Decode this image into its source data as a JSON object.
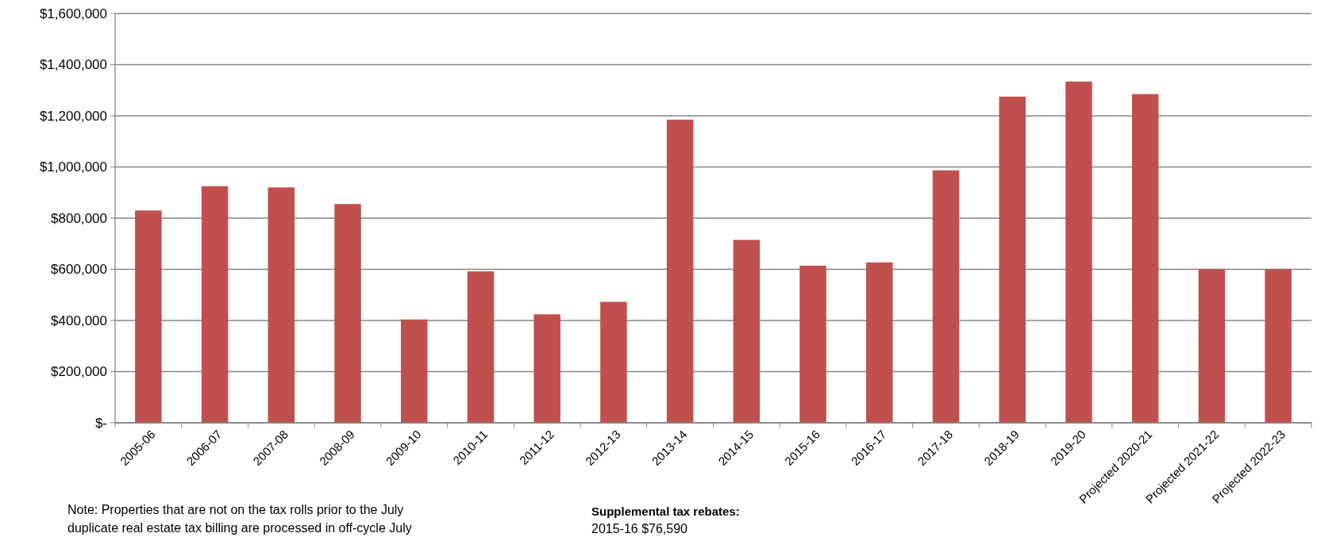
{
  "chart_data": {
    "type": "bar",
    "categories": [
      "2005-06",
      "2006-07",
      "2007-08",
      "2008-09",
      "2009-10",
      "2010-11",
      "2011-12",
      "2012-13",
      "2013-14",
      "2014-15",
      "2015-16",
      "2016-17",
      "2017-18",
      "2018-19",
      "2019-20",
      "Projected 2020-21",
      "Projected 2021-22",
      "Projected 2022-23"
    ],
    "values": [
      830000,
      925000,
      920000,
      855000,
      404000,
      592000,
      424000,
      473000,
      1185000,
      715000,
      614000,
      627000,
      987000,
      1275000,
      1334000,
      1285000,
      600000,
      600000
    ],
    "color": "#c0504d",
    "ylim": [
      0,
      1600000
    ],
    "yticks": [
      {
        "value": 0,
        "label": "$-"
      },
      {
        "value": 200000,
        "label": "$200,000"
      },
      {
        "value": 400000,
        "label": "$400,000"
      },
      {
        "value": 600000,
        "label": "$600,000"
      },
      {
        "value": 800000,
        "label": "$800,000"
      },
      {
        "value": 1000000,
        "label": "$1,000,000"
      },
      {
        "value": 1200000,
        "label": "$1,200,000"
      },
      {
        "value": 1400000,
        "label": "$1,400,000"
      },
      {
        "value": 1600000,
        "label": "$1,600,000"
      }
    ],
    "grid": "y",
    "annotations": [
      "Note: Properties that are not on the tax rolls prior to the July duplicate real estate tax billing are processed in off-cycle July",
      "Supplemental tax rebates:",
      "2015-16 $76,590"
    ]
  }
}
